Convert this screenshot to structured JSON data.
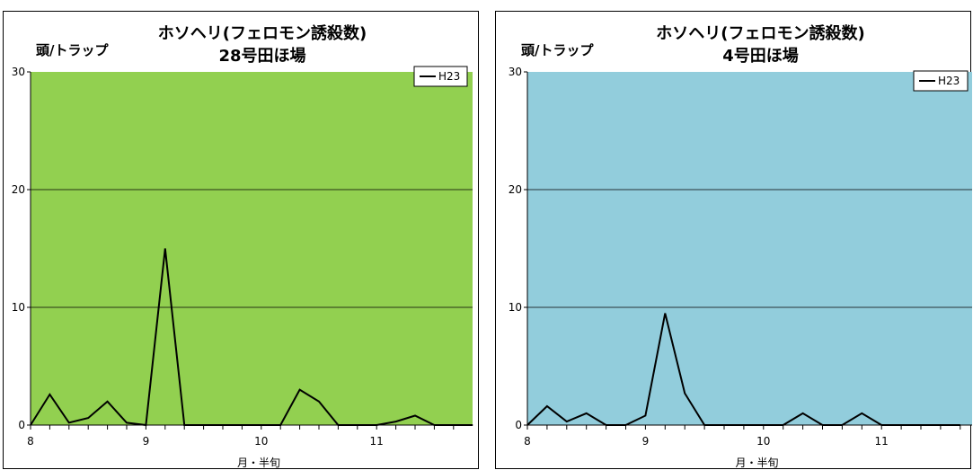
{
  "chart_data": [
    {
      "type": "line",
      "title": "ホソヘリ(フェロモン誘殺数)",
      "subtitle": "28号田ほ場",
      "ylabel": "頭/トラップ",
      "xlabel": "月・半旬",
      "ylim": [
        0,
        30
      ],
      "yticks": [
        "0",
        "10",
        "20",
        "30"
      ],
      "xticks": [
        "8",
        "9",
        "10",
        "11"
      ],
      "plot_bg": "#92d050",
      "grid": true,
      "legend": "top-right",
      "series": [
        {
          "name": "H23",
          "color": "#000000",
          "values": [
            0,
            2.6,
            0.2,
            0.6,
            2.0,
            0.2,
            0,
            15,
            0,
            0,
            0,
            0,
            0,
            0,
            3,
            2,
            0,
            0,
            0,
            0.3,
            0.8,
            0,
            0,
            0,
            0
          ]
        }
      ]
    },
    {
      "type": "line",
      "title": "ホソヘリ(フェロモン誘殺数)",
      "subtitle": "4号田ほ場",
      "ylabel": "頭/トラップ",
      "xlabel": "月・半旬",
      "ylim": [
        0,
        30
      ],
      "yticks": [
        "0",
        "10",
        "20",
        "30"
      ],
      "xticks": [
        "8",
        "9",
        "10",
        "11"
      ],
      "plot_bg": "#92cddc",
      "grid": true,
      "legend": "top-right",
      "series": [
        {
          "name": "H23",
          "color": "#000000",
          "values": [
            0,
            1.6,
            0.3,
            1.0,
            0,
            0,
            0.8,
            9.5,
            2.7,
            0,
            0,
            0,
            0,
            0,
            1.0,
            0,
            0,
            1.0,
            0,
            0,
            0,
            0,
            0,
            0,
            0,
            0,
            0
          ]
        }
      ]
    }
  ]
}
